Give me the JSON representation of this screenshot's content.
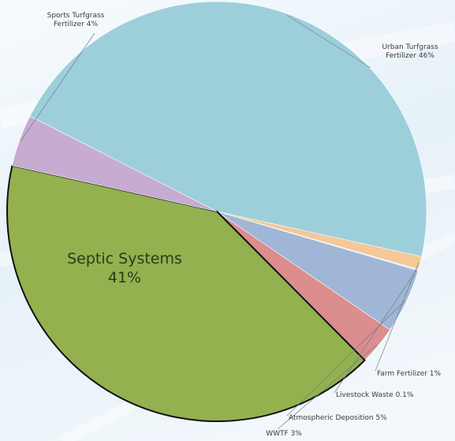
{
  "chart_data": {
    "type": "pie",
    "title": "",
    "legend": "none",
    "slices": [
      {
        "label": "Urban Turfgrass Fertilizer",
        "value": 46,
        "display": "Urban Turfgrass Fertilizer 46%",
        "lines": [
          "Urban Turfgrass",
          "Fertilizer 46%"
        ],
        "color": "#9dcfdb"
      },
      {
        "label": "Farm Fertilizer",
        "value": 1,
        "display": "Farm Fertilizer 1%",
        "lines": [
          "Farm Fertilizer 1%"
        ],
        "color": "#f4c898"
      },
      {
        "label": "Livestock Waste",
        "value": 0.1,
        "display": "Livestock Waste 0.1%",
        "lines": [
          "Livestock Waste 0.1%"
        ],
        "color": "#d7e6ee"
      },
      {
        "label": "Atmospheric Deposition",
        "value": 5,
        "display": "Atmospheric Deposition 5%",
        "lines": [
          "Atmospheric Deposition 5%"
        ],
        "color": "#9fb6d6"
      },
      {
        "label": "WWTF",
        "value": 3,
        "display": "WWTF 3%",
        "lines": [
          "WWTF 3%"
        ],
        "color": "#dc8d8d"
      },
      {
        "label": "Septic Systems",
        "value": 41,
        "display": "Septic Systems 41%",
        "lines": [
          "Septic Systems",
          "41%"
        ],
        "color": "#93b14f"
      },
      {
        "label": "Sports Turfgrass Fertilizer",
        "value": 4,
        "display": "Sports Turfgrass Fertilizer 4%",
        "lines": [
          "Sports Turfgrass",
          "Fertilizer 4%"
        ],
        "color": "#c7abd0"
      }
    ]
  }
}
